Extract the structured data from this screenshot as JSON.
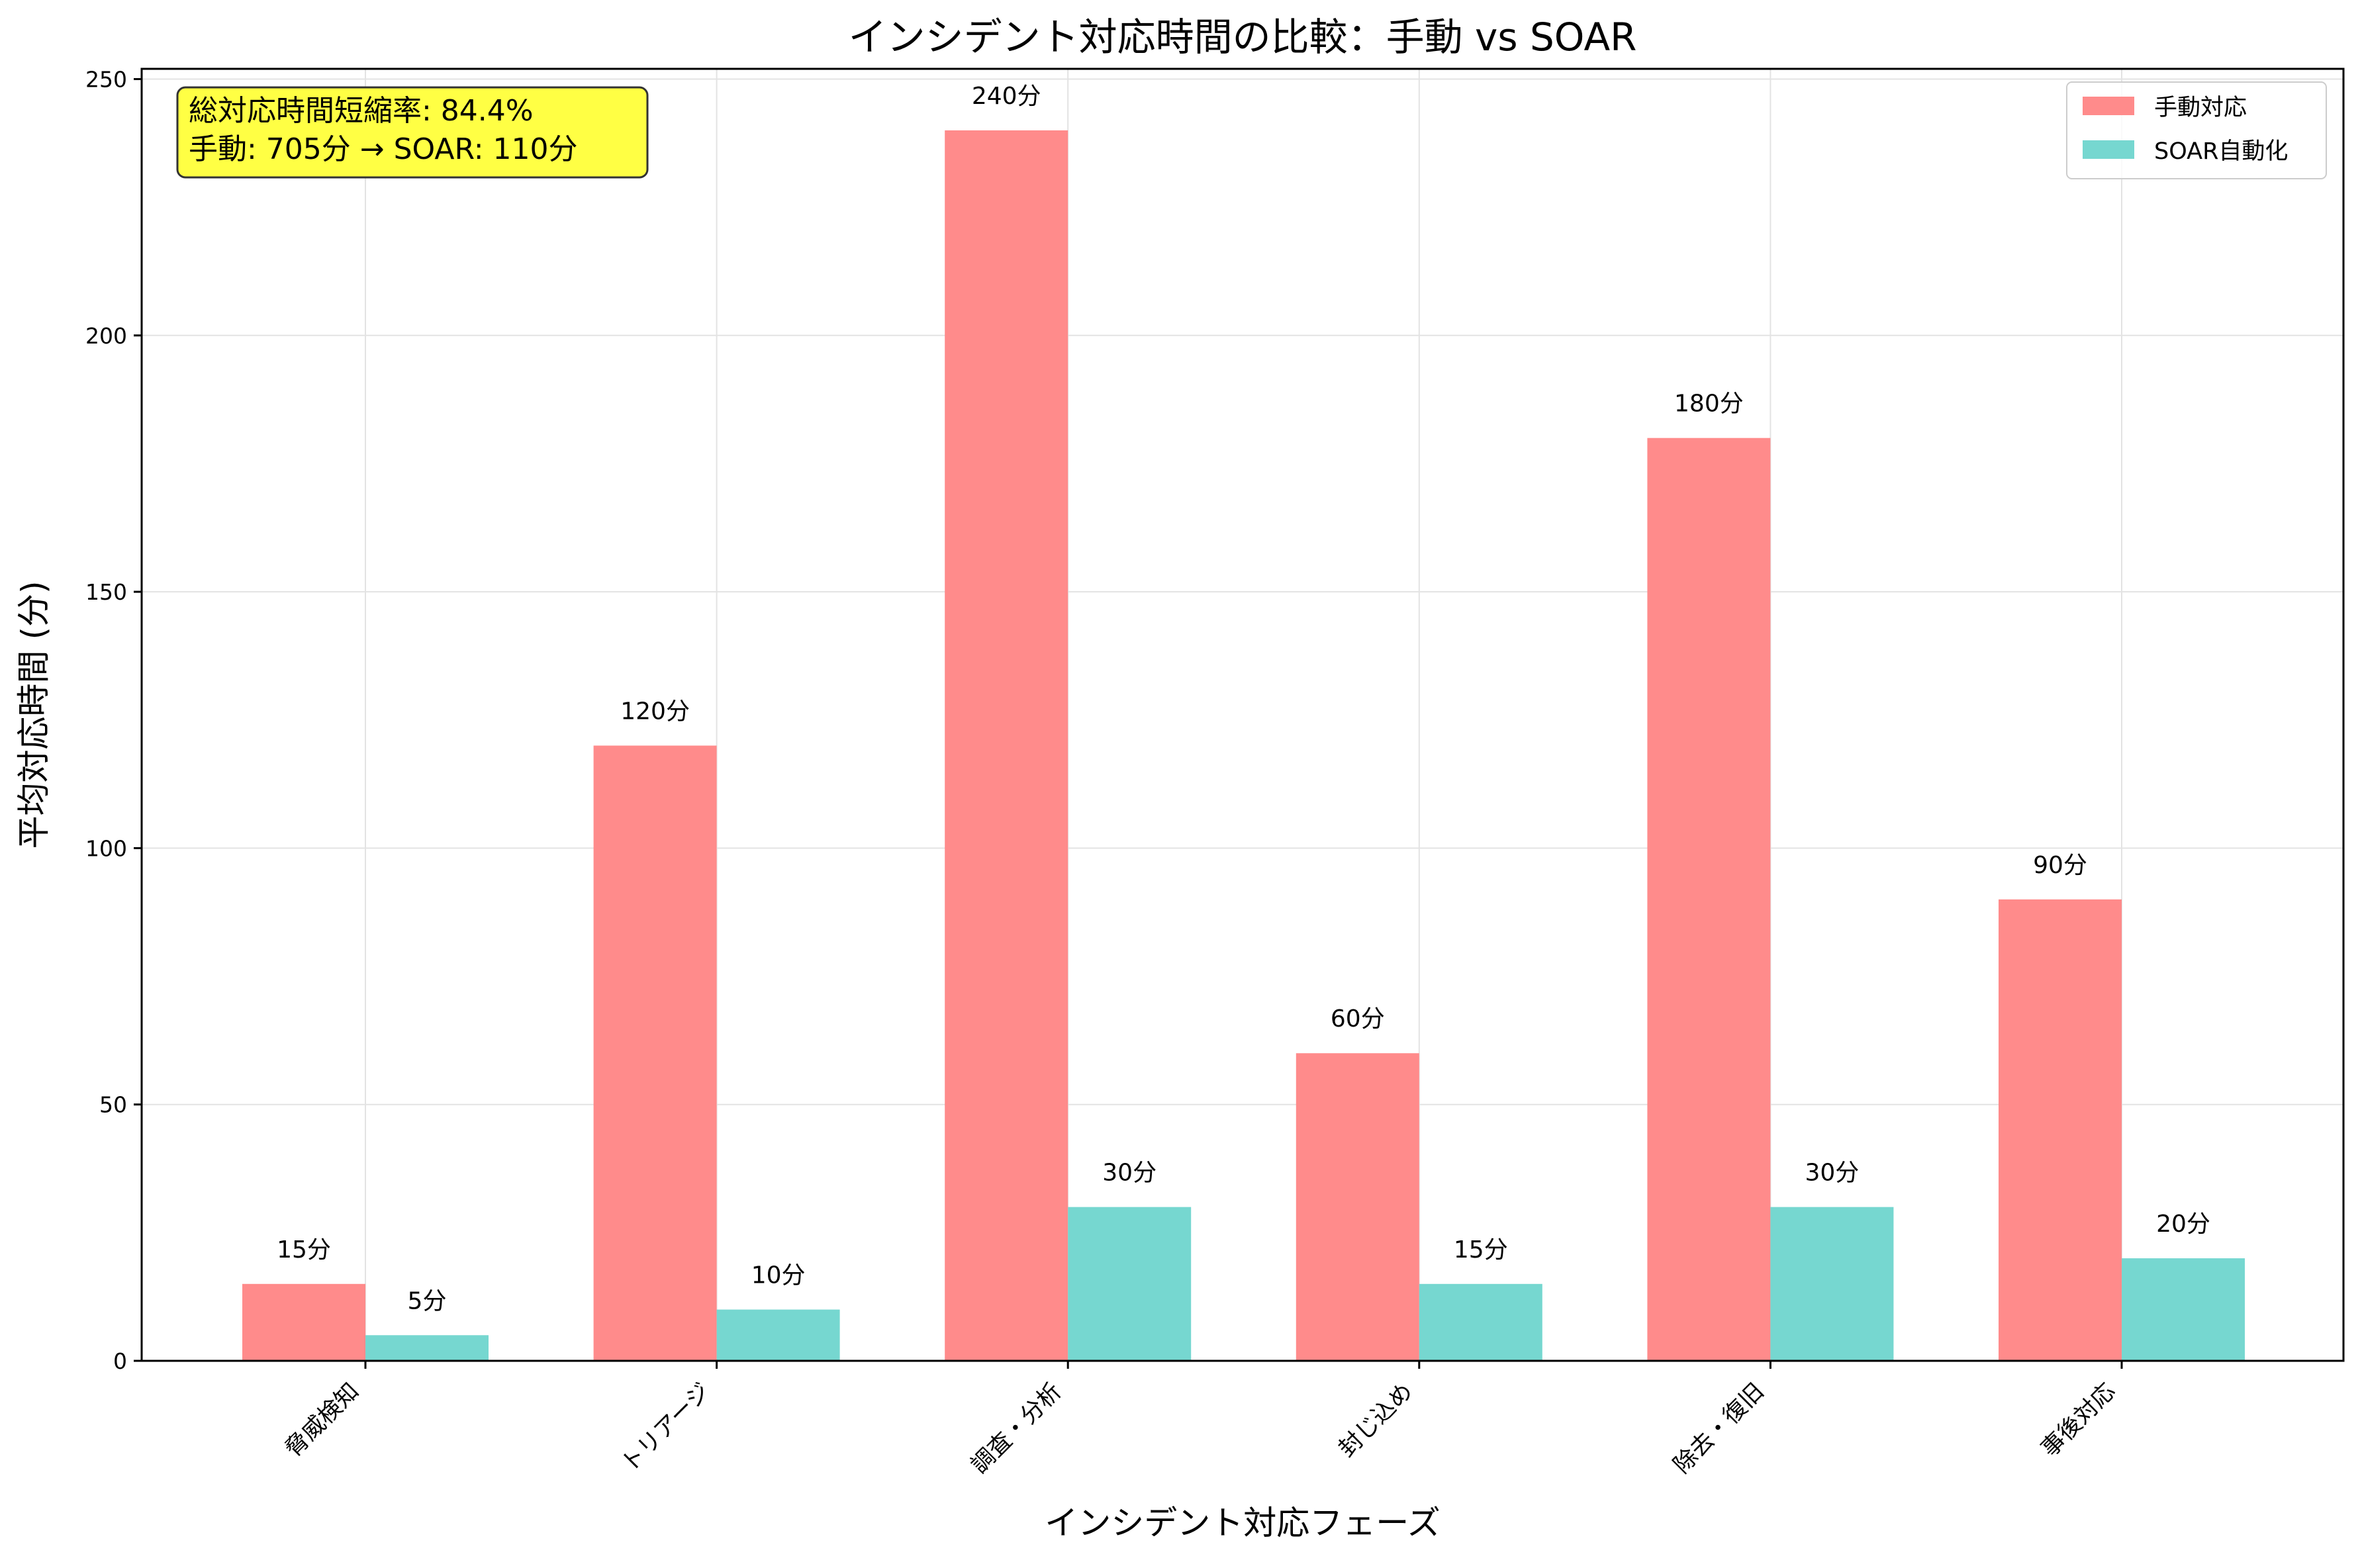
{
  "chart_data": {
    "type": "bar",
    "title": "インシデント対応時間の比較：手動 vs SOAR",
    "xlabel": "インシデント対応フェーズ",
    "ylabel": "平均対応時間 (分)",
    "ylim": [
      0,
      252
    ],
    "yticks": [
      0,
      50,
      100,
      150,
      200,
      250
    ],
    "grid": true,
    "legend_position": "top-right",
    "categories": [
      "脅威検知",
      "トリアージ",
      "調査・分析",
      "封じ込め",
      "除去・復旧",
      "事後対応"
    ],
    "series": [
      {
        "name": "手動対応",
        "color": "#ff8b8b",
        "values": [
          15,
          120,
          240,
          60,
          180,
          90
        ],
        "labels": [
          "15分",
          "120分",
          "240分",
          "60分",
          "180分",
          "90分"
        ]
      },
      {
        "name": "SOAR自動化",
        "color": "#76d7d0",
        "values": [
          5,
          10,
          30,
          15,
          30,
          20
        ],
        "labels": [
          "5分",
          "10分",
          "30分",
          "15分",
          "30分",
          "20分"
        ]
      }
    ],
    "annotation": {
      "lines": [
        "総対応時間短縮率: 84.4%",
        "手動: 705分 → SOAR: 110分"
      ],
      "background": "#ffff44"
    }
  }
}
